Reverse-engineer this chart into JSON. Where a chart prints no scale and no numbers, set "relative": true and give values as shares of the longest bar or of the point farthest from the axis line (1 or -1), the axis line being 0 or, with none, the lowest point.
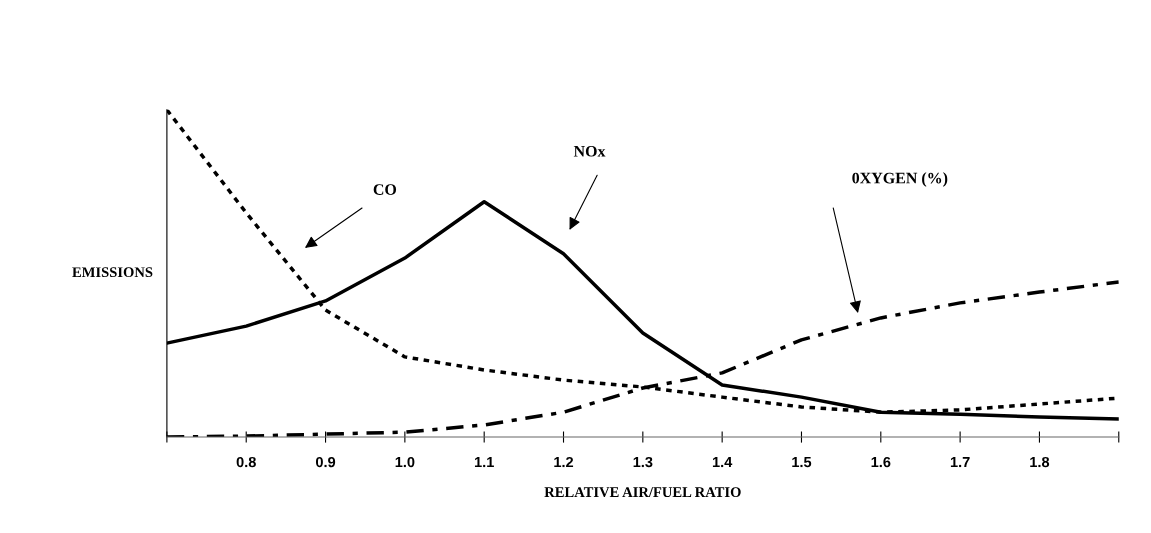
{
  "chart_data": {
    "type": "line",
    "relative": true,
    "xlabel": "RELATIVE AIR/FUEL RATIO",
    "ylabel": "EMISSIONS",
    "x": [
      0.7,
      0.8,
      0.9,
      1.0,
      1.1,
      1.2,
      1.3,
      1.4,
      1.5,
      1.6,
      1.7,
      1.8,
      1.9
    ],
    "xlim": [
      0.7,
      1.9
    ],
    "xticks": [
      {
        "value": 0.7,
        "label": null
      },
      0.8,
      0.9,
      {
        "value": 1.0,
        "label": "1.0"
      },
      1.1,
      1.2,
      1.3,
      1.4,
      1.5,
      1.6,
      1.7,
      1.8,
      {
        "value": 1.9,
        "label": null
      }
    ],
    "tick_labels": "x",
    "grid": false,
    "legend": false,
    "marker": "none",
    "series": [
      {
        "color": "#000000",
        "line_style": "dotted",
        "values": [
          1.0,
          0.685,
          0.388,
          0.245,
          0.205,
          0.174,
          0.153,
          0.122,
          0.092,
          0.076,
          0.083,
          0.101,
          0.119
        ]
      },
      {
        "color": "#000000",
        "line_style": "solid",
        "values": [
          0.287,
          0.339,
          0.416,
          0.547,
          0.719,
          0.56,
          0.318,
          0.159,
          0.122,
          0.076,
          0.07,
          0.061,
          0.055
        ]
      },
      {
        "color": "#000000",
        "line_style": "dashdot",
        "values": [
          0.0,
          0.003,
          0.009,
          0.015,
          0.037,
          0.076,
          0.15,
          0.196,
          0.297,
          0.364,
          0.41,
          0.443,
          0.474
        ]
      }
    ],
    "annotations": [
      "CO",
      "NOx",
      "0XYGEN (%)"
    ]
  }
}
